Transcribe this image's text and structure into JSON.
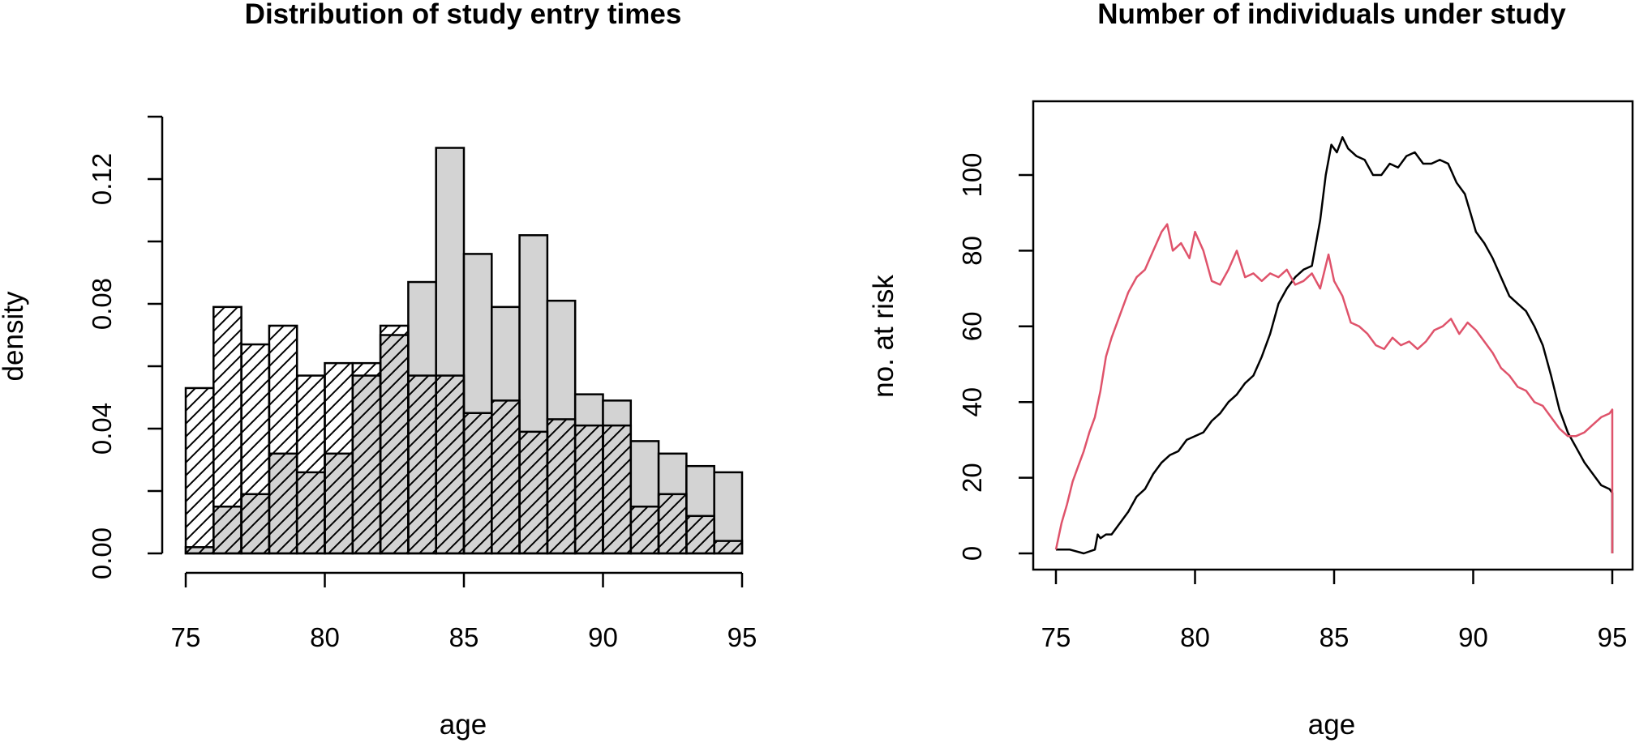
{
  "chart_data": [
    {
      "type": "bar",
      "title": "Distribution of study entry times",
      "xlabel": "age",
      "ylabel": "density",
      "xlim": [
        75,
        95
      ],
      "ylim": [
        0,
        0.14
      ],
      "xticks": [
        "75",
        "80",
        "85",
        "90",
        "95"
      ],
      "yticks": [
        "0.00",
        "0.04",
        "0.08",
        "0.12"
      ],
      "bin_width": 1,
      "bin_starts": [
        75,
        76,
        77,
        78,
        79,
        80,
        81,
        82,
        83,
        84,
        85,
        86,
        87,
        88,
        89,
        90,
        91,
        92,
        93,
        94
      ],
      "series": [
        {
          "fill": "hatched",
          "values": [
            0.053,
            0.079,
            0.067,
            0.073,
            0.057,
            0.061,
            0.061,
            0.073,
            0.057,
            0.057,
            0.045,
            0.049,
            0.039,
            0.043,
            0.041,
            0.041,
            0.015,
            0.019,
            0.012,
            0.004
          ]
        },
        {
          "fill": "gray",
          "values": [
            0.002,
            0.015,
            0.019,
            0.032,
            0.026,
            0.032,
            0.057,
            0.07,
            0.087,
            0.13,
            0.096,
            0.079,
            0.102,
            0.081,
            0.051,
            0.049,
            0.036,
            0.032,
            0.028,
            0.026
          ]
        }
      ],
      "colors": {
        "gray": "#d3d3d3",
        "hatch": "#000000"
      }
    },
    {
      "type": "line",
      "title": "Number of individuals under study",
      "xlabel": "age",
      "ylabel": "no. at risk",
      "xlim": [
        75,
        95
      ],
      "ylim": [
        0,
        110
      ],
      "xticks": [
        "75",
        "80",
        "85",
        "90",
        "95"
      ],
      "yticks": [
        "0",
        "20",
        "40",
        "60",
        "80",
        "100"
      ],
      "series": [
        {
          "color": "#000000",
          "x": [
            75.0,
            75.5,
            76.0,
            76.4,
            76.5,
            76.6,
            76.8,
            77.0,
            77.3,
            77.6,
            77.9,
            78.2,
            78.5,
            78.8,
            79.1,
            79.4,
            79.7,
            80.0,
            80.3,
            80.6,
            80.9,
            81.2,
            81.5,
            81.8,
            82.1,
            82.4,
            82.7,
            83.0,
            83.3,
            83.6,
            83.9,
            84.2,
            84.5,
            84.7,
            84.9,
            85.1,
            85.3,
            85.5,
            85.8,
            86.1,
            86.4,
            86.7,
            87.0,
            87.3,
            87.6,
            87.9,
            88.2,
            88.5,
            88.8,
            89.1,
            89.4,
            89.7,
            89.9,
            90.1,
            90.4,
            90.7,
            91.0,
            91.3,
            91.6,
            91.9,
            92.2,
            92.5,
            92.8,
            93.1,
            93.4,
            93.7,
            94.0,
            94.3,
            94.6,
            94.9,
            95.0,
            95.0
          ],
          "y": [
            1,
            1,
            0,
            1,
            5,
            4,
            5,
            5,
            8,
            11,
            15,
            17,
            21,
            24,
            26,
            27,
            30,
            31,
            32,
            35,
            37,
            40,
            42,
            45,
            47,
            52,
            58,
            66,
            70,
            73,
            75,
            76,
            88,
            100,
            108,
            106,
            110,
            107,
            105,
            104,
            100,
            100,
            103,
            102,
            105,
            106,
            103,
            103,
            104,
            103,
            98,
            95,
            90,
            85,
            82,
            78,
            73,
            68,
            66,
            64,
            60,
            55,
            47,
            38,
            32,
            28,
            24,
            21,
            18,
            17,
            16,
            0
          ]
        },
        {
          "color": "#df536b",
          "x": [
            75.0,
            75.2,
            75.4,
            75.6,
            75.8,
            76.0,
            76.2,
            76.4,
            76.6,
            76.8,
            77.0,
            77.3,
            77.6,
            77.9,
            78.2,
            78.5,
            78.8,
            79.0,
            79.2,
            79.5,
            79.8,
            80.0,
            80.3,
            80.6,
            80.9,
            81.2,
            81.5,
            81.8,
            82.1,
            82.4,
            82.7,
            83.0,
            83.3,
            83.6,
            83.9,
            84.2,
            84.5,
            84.8,
            85.0,
            85.3,
            85.6,
            85.9,
            86.2,
            86.5,
            86.8,
            87.1,
            87.4,
            87.7,
            88.0,
            88.3,
            88.6,
            88.9,
            89.2,
            89.5,
            89.8,
            90.1,
            90.4,
            90.7,
            91.0,
            91.3,
            91.6,
            91.9,
            92.2,
            92.5,
            92.8,
            93.1,
            93.4,
            93.7,
            94.0,
            94.3,
            94.6,
            94.9,
            95.0,
            95.0
          ],
          "y": [
            1,
            8,
            13,
            19,
            23,
            27,
            32,
            36,
            43,
            52,
            57,
            63,
            69,
            73,
            75,
            80,
            85,
            87,
            80,
            82,
            78,
            85,
            80,
            72,
            71,
            75,
            80,
            73,
            74,
            72,
            74,
            73,
            75,
            71,
            72,
            74,
            70,
            79,
            72,
            68,
            61,
            60,
            58,
            55,
            54,
            57,
            55,
            56,
            54,
            56,
            59,
            60,
            62,
            58,
            61,
            59,
            56,
            53,
            49,
            47,
            44,
            43,
            40,
            39,
            36,
            33,
            31,
            31,
            32,
            34,
            36,
            37,
            38,
            0
          ]
        }
      ]
    }
  ]
}
